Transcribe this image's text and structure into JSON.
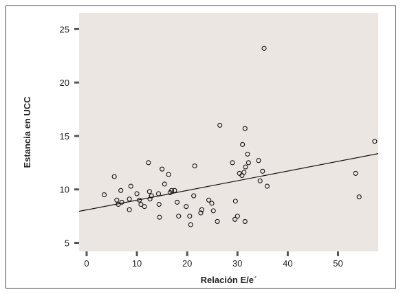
{
  "chart_data": {
    "type": "scatter",
    "title": "",
    "xlabel": "Relación E/e´",
    "ylabel": "Estancia en UCC",
    "xlim": [
      -1.5,
      58
    ],
    "ylim": [
      4.2,
      26.5
    ],
    "xticks": [
      "0",
      "10",
      "20",
      "30",
      "40",
      "50"
    ],
    "yticks": [
      "5",
      "10",
      "15",
      "20",
      "25"
    ],
    "grid": false,
    "legend": "none",
    "colors": {
      "plot_bg": "#ebe6e2",
      "marker": "#111111",
      "line": "#111111"
    },
    "series": [
      {
        "points": [
          [
            3.5,
            9.5
          ],
          [
            5.5,
            11.2
          ],
          [
            6.0,
            9.0
          ],
          [
            6.3,
            8.6
          ],
          [
            6.8,
            9.9
          ],
          [
            7.0,
            8.8
          ],
          [
            8.5,
            8.1
          ],
          [
            8.5,
            9.1
          ],
          [
            8.8,
            10.3
          ],
          [
            10.0,
            9.6
          ],
          [
            10.5,
            9.0
          ],
          [
            10.8,
            8.6
          ],
          [
            11.5,
            8.4
          ],
          [
            12.3,
            12.5
          ],
          [
            12.5,
            9.8
          ],
          [
            12.6,
            9.1
          ],
          [
            12.9,
            9.4
          ],
          [
            14.3,
            9.6
          ],
          [
            14.4,
            8.6
          ],
          [
            14.5,
            7.4
          ],
          [
            15.0,
            11.9
          ],
          [
            15.5,
            10.5
          ],
          [
            16.3,
            11.4
          ],
          [
            16.6,
            9.7
          ],
          [
            16.9,
            9.9
          ],
          [
            17.5,
            9.9
          ],
          [
            18.0,
            8.8
          ],
          [
            18.3,
            7.5
          ],
          [
            19.8,
            8.4
          ],
          [
            20.5,
            7.5
          ],
          [
            20.7,
            6.7
          ],
          [
            21.3,
            9.4
          ],
          [
            21.5,
            12.2
          ],
          [
            22.7,
            7.8
          ],
          [
            22.9,
            8.1
          ],
          [
            24.3,
            9.0
          ],
          [
            24.9,
            8.7
          ],
          [
            25.2,
            8.0
          ],
          [
            26.0,
            7.0
          ],
          [
            26.5,
            16.0
          ],
          [
            29.0,
            12.5
          ],
          [
            29.5,
            7.2
          ],
          [
            29.6,
            8.9
          ],
          [
            30.0,
            7.5
          ],
          [
            30.4,
            11.5
          ],
          [
            30.9,
            11.3
          ],
          [
            31.0,
            14.2
          ],
          [
            31.3,
            11.6
          ],
          [
            31.5,
            7.0
          ],
          [
            31.6,
            12.1
          ],
          [
            31.5,
            15.7
          ],
          [
            32.0,
            13.3
          ],
          [
            32.2,
            12.5
          ],
          [
            34.2,
            12.7
          ],
          [
            34.5,
            10.8
          ],
          [
            35.0,
            11.7
          ],
          [
            35.3,
            23.2
          ],
          [
            35.9,
            10.3
          ],
          [
            53.5,
            11.5
          ],
          [
            54.2,
            9.3
          ],
          [
            57.3,
            14.5
          ]
        ]
      }
    ],
    "fit_line": {
      "x": [
        -1.5,
        58
      ],
      "y": [
        7.95,
        13.35
      ]
    }
  }
}
